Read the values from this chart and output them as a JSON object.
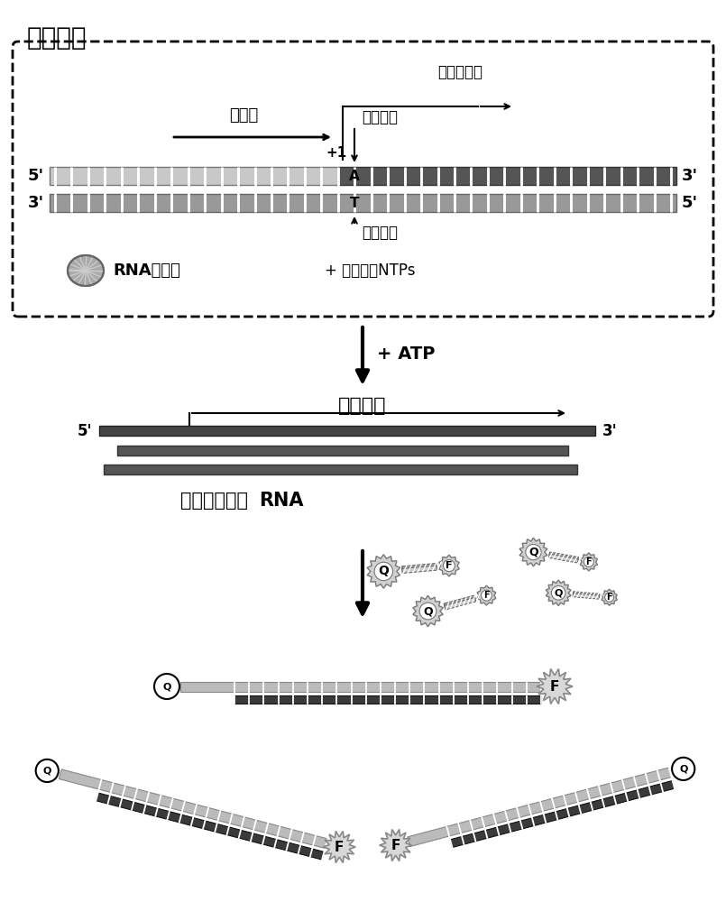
{
  "title": "转录机器",
  "label_promoter": "启动子",
  "label_transcription_start": "转录起始点",
  "label_target_site": "目标位点",
  "label_recognition_site": "识别位点",
  "label_rna_pol": "RNA聚合酶",
  "label_ntps": "+ 其余过量NTPs",
  "label_atp": "+ ATP",
  "label_signal_seq": "信号序列",
  "label_rna_product": "完整转录产物RNA",
  "label_5prime": "5'",
  "label_3prime": "3'",
  "label_plus1": "+1",
  "label_A": "A",
  "label_T": "T",
  "label_Q": "Q",
  "label_F": "F"
}
